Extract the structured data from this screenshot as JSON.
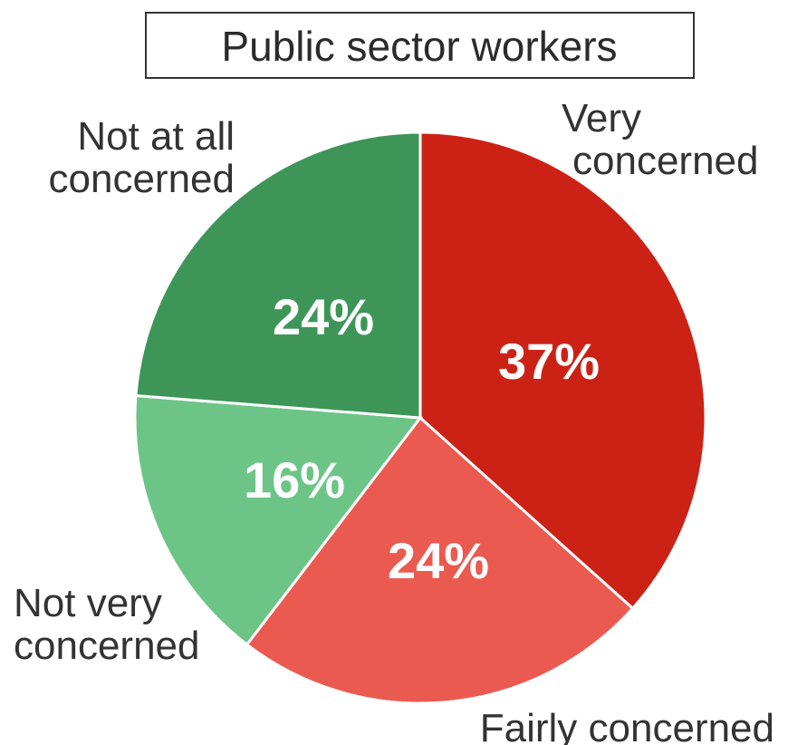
{
  "chart_data": {
    "type": "pie",
    "title": "Public sector workers",
    "slices": [
      {
        "label": [
          "Very",
          "concerned"
        ],
        "value": 37,
        "display": "37%",
        "color": "#cc2216"
      },
      {
        "label": [
          "Fairly concerned"
        ],
        "value": 24,
        "display": "24%",
        "color": "#eb5a50"
      },
      {
        "label": [
          "Not very",
          "concerned"
        ],
        "value": 16,
        "display": "16%",
        "color": "#6cc586"
      },
      {
        "label": [
          "Not at all",
          "concerned"
        ],
        "value": 24,
        "display": "24%",
        "color": "#3d9658"
      }
    ]
  }
}
